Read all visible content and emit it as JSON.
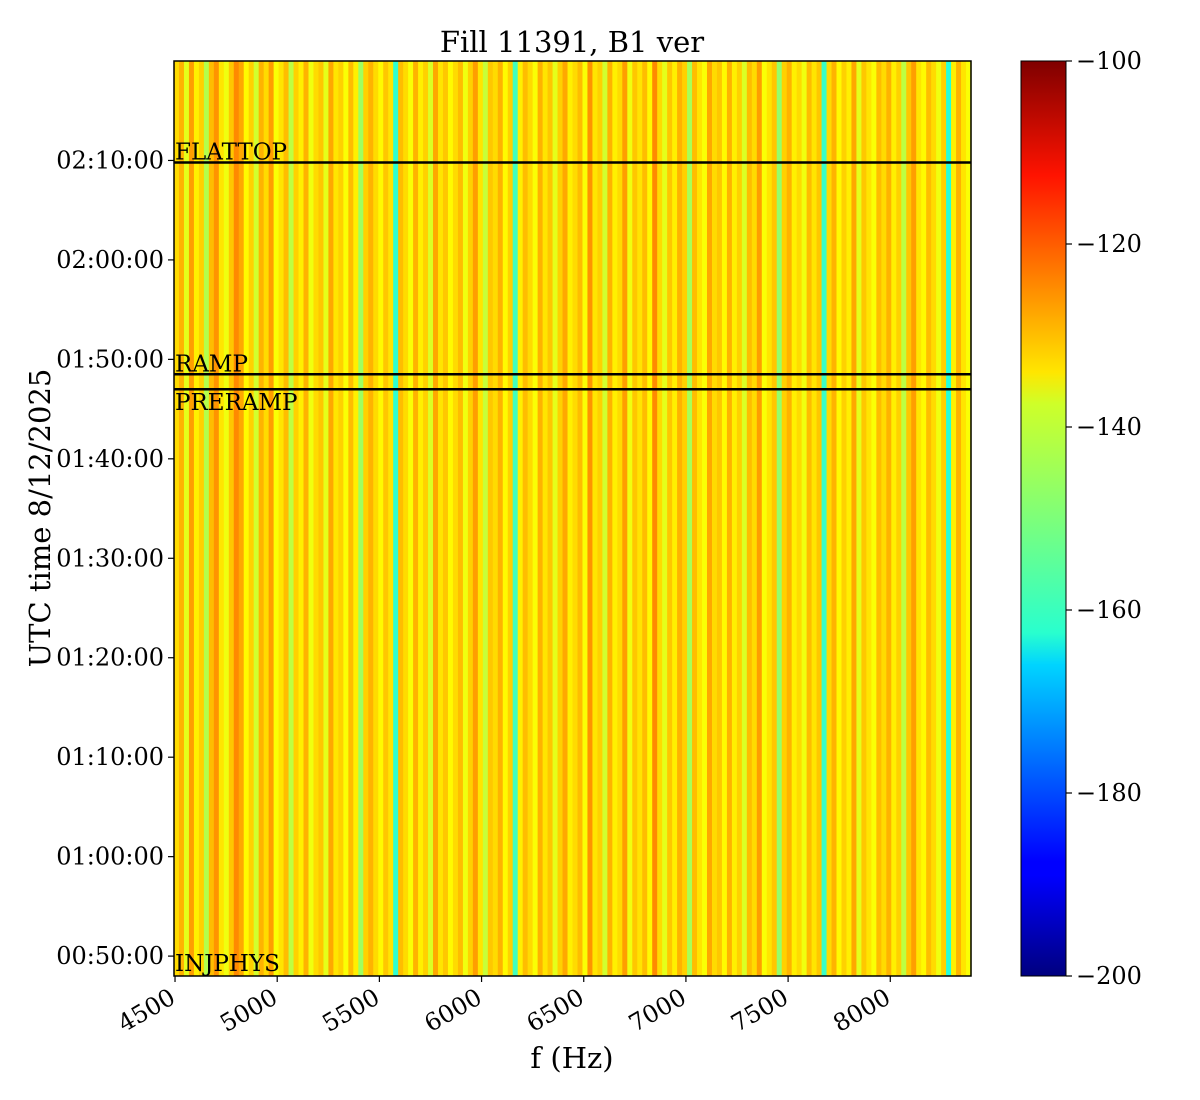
{
  "chart_data": {
    "type": "heatmap",
    "title": "Fill 11391, B1 ver",
    "xlabel": "f (Hz)",
    "ylabel": "UTC time 8/12/2025",
    "xlim": [
      4495,
      8395
    ],
    "ylim_minutes": [
      48.0,
      140.0
    ],
    "x_ticks": [
      4500,
      5000,
      5500,
      6000,
      6500,
      7000,
      7500,
      8000
    ],
    "x_tick_labels": [
      "4500",
      "5000",
      "5500",
      "6000",
      "6500",
      "7000",
      "7500",
      "8000"
    ],
    "y_ticks_minutes": [
      50,
      60,
      70,
      80,
      90,
      100,
      110,
      120,
      130
    ],
    "y_tick_labels": [
      "00:50:00",
      "01:00:00",
      "01:10:00",
      "01:20:00",
      "01:30:00",
      "01:40:00",
      "01:50:00",
      "02:00:00",
      "02:10:00"
    ],
    "colorbar": {
      "colormap": "jet",
      "range": [
        -200,
        -100
      ],
      "ticks": [
        -100,
        -120,
        -140,
        -160,
        -180,
        -200
      ],
      "tick_labels": [
        "−100",
        "−120",
        "−140",
        "−160",
        "−180",
        "−200"
      ]
    },
    "markers": [
      {
        "label": "FLATTOP",
        "time_minutes": 129.8
      },
      {
        "label": "RAMP",
        "time_minutes": 108.5
      },
      {
        "label": "PRERAMP",
        "time_minutes": 107.0
      },
      {
        "label": "INJPHYS",
        "time_minutes": 48.0
      }
    ],
    "column_values_db": [
      -134,
      -130,
      -140,
      -128,
      -136,
      -133,
      -145,
      -131,
      -127,
      -135,
      -139,
      -132,
      -126,
      -129,
      -137,
      -133,
      -142,
      -130,
      -134,
      -128,
      -138,
      -135,
      -131,
      -144,
      -133,
      -136,
      -130,
      -139,
      -134,
      -132,
      -140,
      -129,
      -135,
      -133,
      -138,
      -131,
      -136,
      -147,
      -133,
      -130,
      -134,
      -137,
      -132,
      -135,
      -158,
      -131,
      -134,
      -138,
      -130,
      -136,
      -133,
      -141,
      -129,
      -135,
      -132,
      -137,
      -134,
      -131,
      -139,
      -133,
      -128,
      -135,
      -143,
      -132,
      -134,
      -130,
      -137,
      -133,
      -156,
      -136,
      -131,
      -134,
      -138,
      -130,
      -135,
      -132,
      -140,
      -133,
      -129,
      -136,
      -134,
      -131,
      -138,
      -127,
      -135,
      -133,
      -142,
      -130,
      -136,
      -134,
      -128,
      -139,
      -132,
      -135,
      -131,
      -137,
      -126,
      -134,
      -140,
      -132,
      -136,
      -130,
      -133,
      -146,
      -131,
      -135,
      -138,
      -129,
      -134,
      -132,
      -137,
      -130,
      -136,
      -133,
      -141,
      -131,
      -134,
      -128,
      -138,
      -135,
      -132,
      -148,
      -133,
      -130,
      -136,
      -134,
      -139,
      -131,
      -135,
      -132,
      -157,
      -134,
      -130,
      -137,
      -133,
      -136,
      -129,
      -140,
      -132,
      -135,
      -138,
      -131,
      -134,
      -130,
      -136,
      -133,
      -144,
      -132,
      -128,
      -135,
      -137,
      -131,
      -134,
      -139,
      -133,
      -159,
      -136,
      -130,
      -135,
      -138
    ]
  }
}
